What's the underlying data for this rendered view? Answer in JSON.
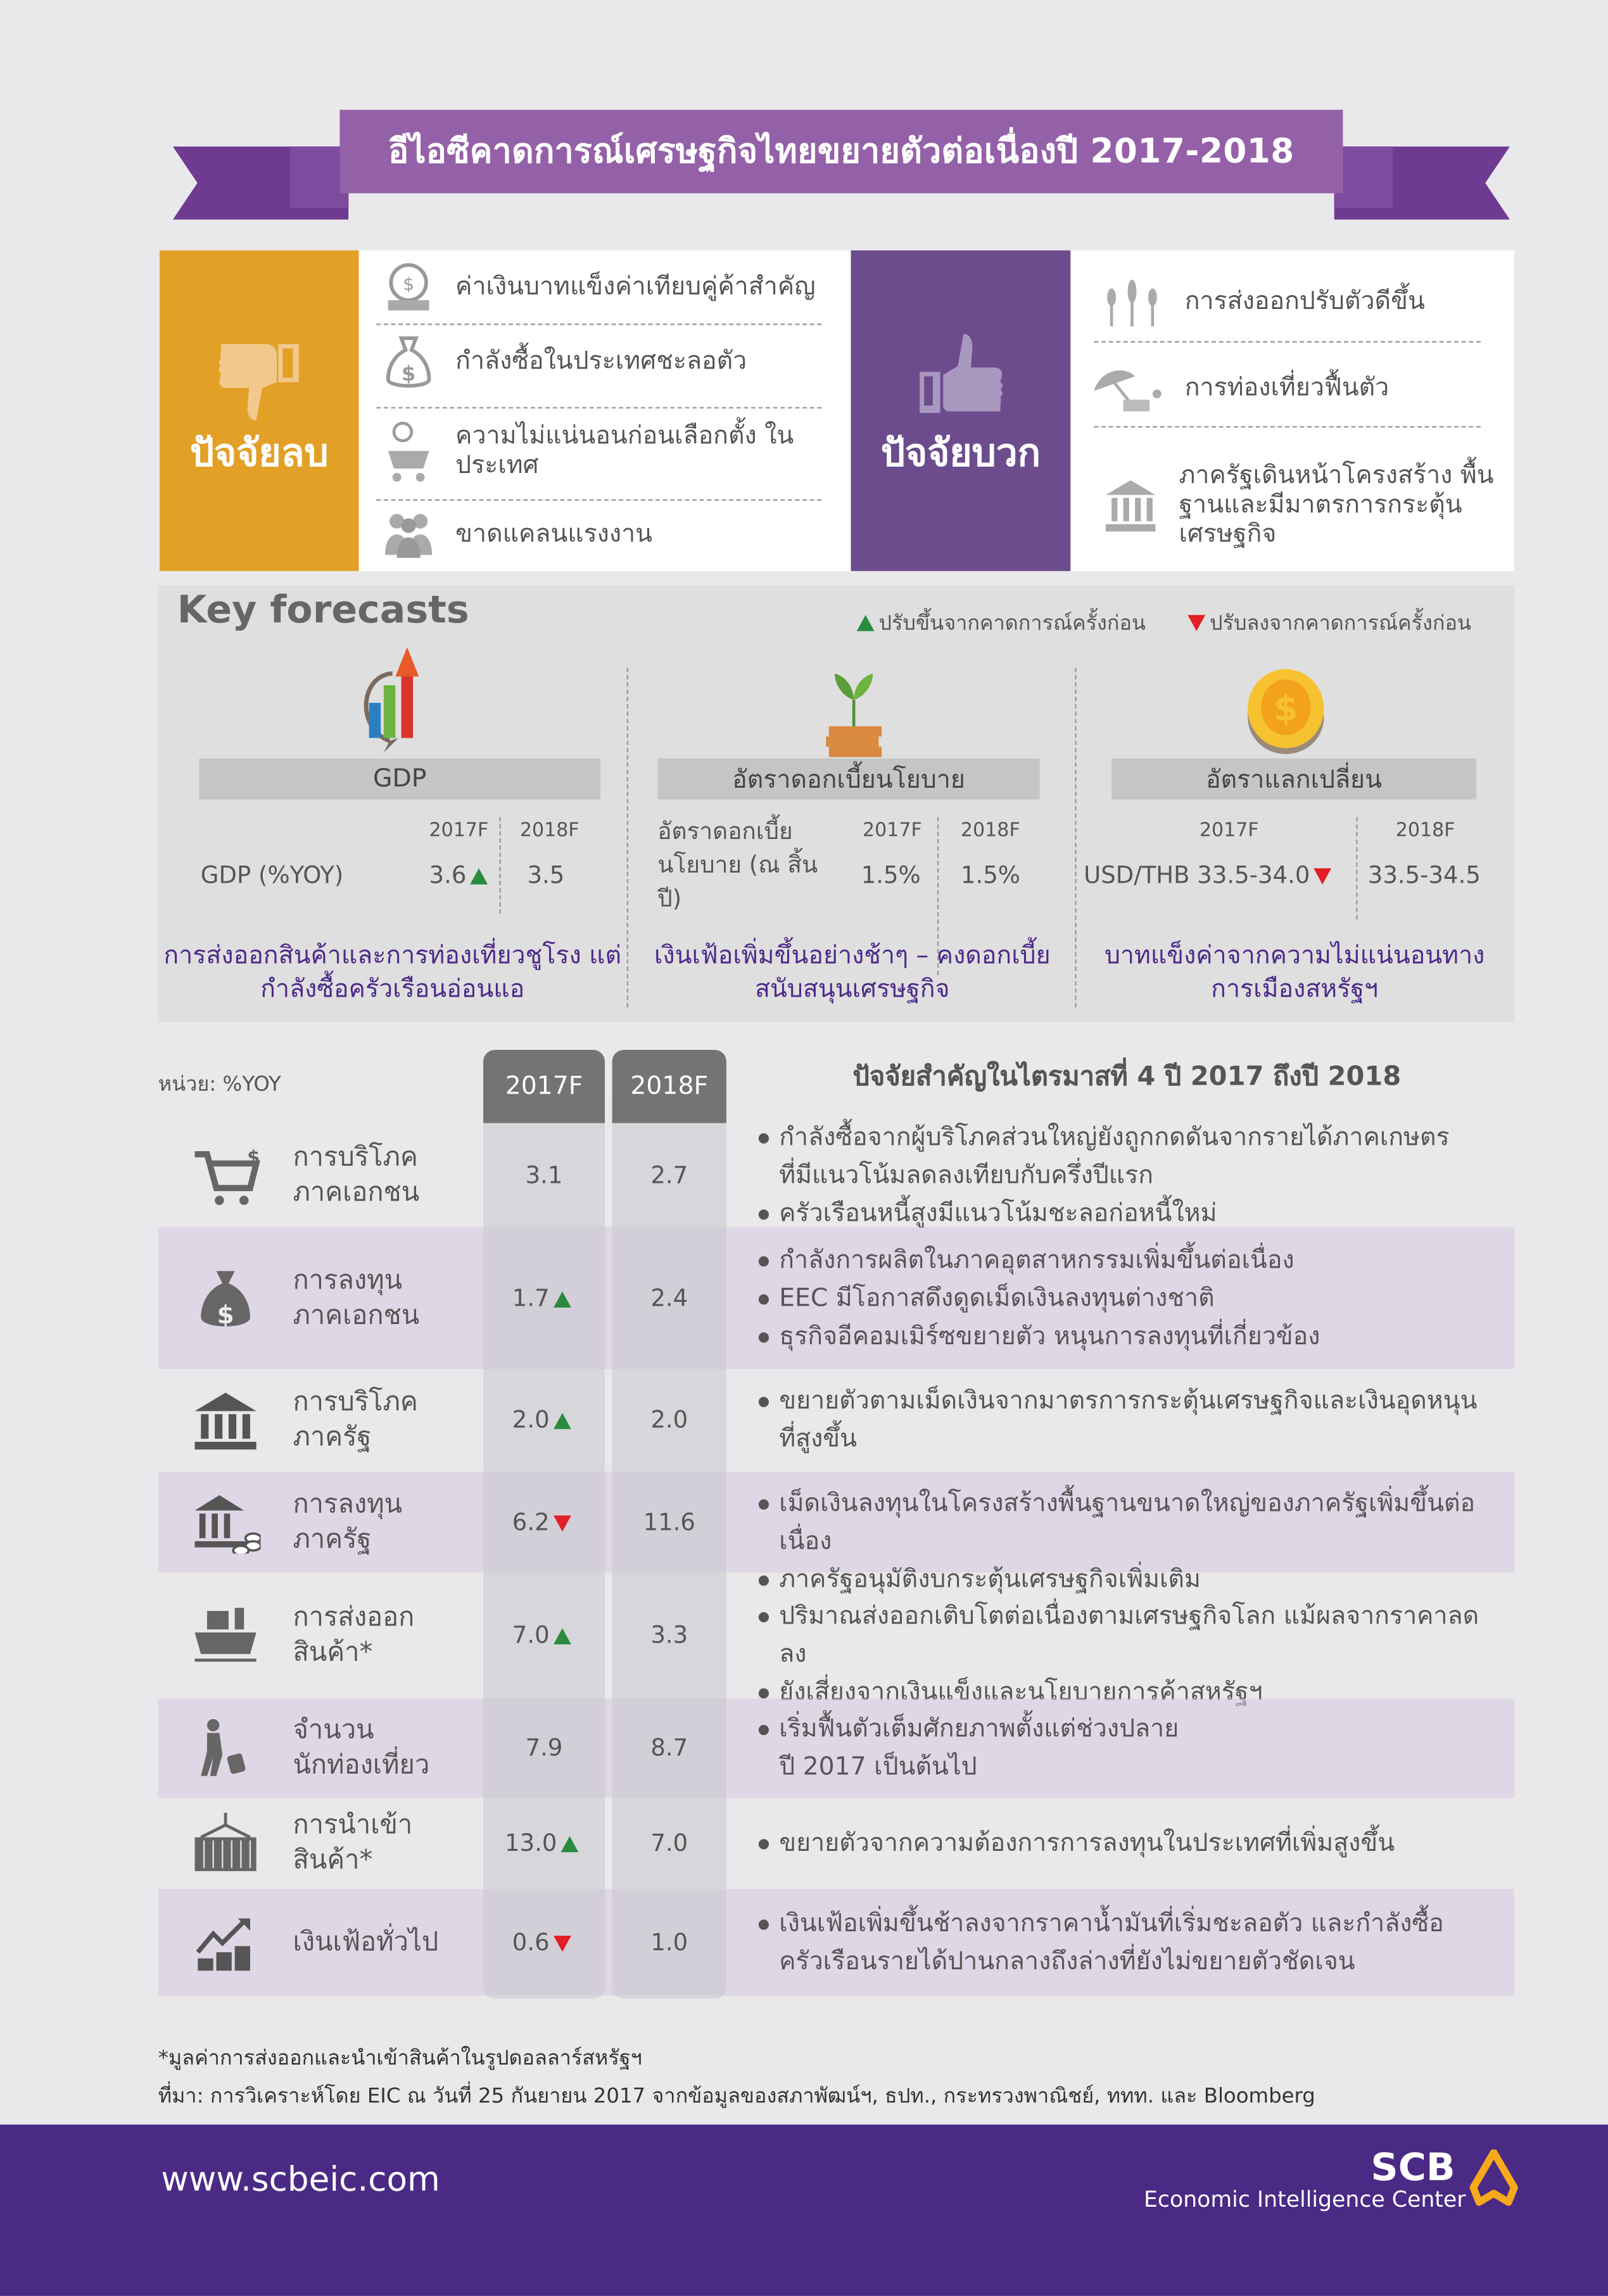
{
  "title": "อีไอซีคาดการณ์เศรษฐกิจไทยขยายตัวต่อเนื่องปี 2017-2018",
  "negative": {
    "label": "ปัจจัยลบ",
    "items": [
      {
        "icon": "currency-globe-icon",
        "text": "ค่าเงินบาทแข็งค่าเทียบคู่ค้าสำคัญ"
      },
      {
        "icon": "money-bag-icon",
        "text": "กำลังซื้อในประเทศชะลอตัว"
      },
      {
        "icon": "cart-coins-icon",
        "text": "ความไม่แน่นอนก่อนเลือกตั้ง ในประเทศ"
      },
      {
        "icon": "workers-icon",
        "text": "ขาดแคลนแรงงาน"
      }
    ]
  },
  "positive": {
    "label": "ปัจจัยบวก",
    "items": [
      {
        "icon": "wheat-icon",
        "text": "การส่งออกปรับตัวดีขึ้น"
      },
      {
        "icon": "beach-umbrella-icon",
        "text": "การท่องเที่ยวฟื้นตัว"
      },
      {
        "icon": "government-building-icon",
        "text": "ภาครัฐเดินหน้าโครงสร้าง พื้นฐานและมีมาตรการกระตุ้น เศรษฐกิจ"
      }
    ]
  },
  "colors": {
    "negative": "#e3a027",
    "positive": "#6c4c8d",
    "up": "#2a8a3e",
    "down": "#e31e24",
    "footer": "#4a2a84"
  },
  "key_forecasts": {
    "title": "Key forecasts",
    "legend_up": "ปรับขึ้นจากคาดการณ์ครั้งก่อน",
    "legend_down": "ปรับลงจากคาดการณ์ครั้งก่อน",
    "gdp": {
      "header": "GDP",
      "y1": "2017F",
      "y2": "2018F",
      "label": "GDP (%YOY)",
      "v1": "3.6",
      "v1_trend": "up",
      "v2": "3.5",
      "note": "การส่งออกสินค้าและการท่องเที่ยวชูโรง แต่กำลังซื้อครัวเรือนอ่อนแอ"
    },
    "rate": {
      "header": "อัตราดอกเบี้ยนโยบาย",
      "y1": "2017F",
      "y2": "2018F",
      "label": "อัตราดอกเบี้ย นโยบาย (ณ สิ้นปี)",
      "v1": "1.5%",
      "v2": "1.5%",
      "note": "เงินเฟ้อเพิ่มขึ้นอย่างช้าๆ – คงดอกเบี้ยสนับสนุนเศรษฐกิจ"
    },
    "fx": {
      "header": "อัตราแลกเปลี่ยน",
      "y1": "2017F",
      "y2": "2018F",
      "label": "USD/THB",
      "v1": "33.5-34.0",
      "v1_trend": "down",
      "v2": "33.5-34.5",
      "note": "บาทแข็งค่าจากความไม่แน่นอนทาง การเมืองสหรัฐฯ"
    }
  },
  "table": {
    "unit": "หน่วย: %YOY",
    "col1": "2017F",
    "col2": "2018F",
    "factors_title": "ปัจจัยสำคัญในไตรมาสที่ 4 ปี 2017 ถึงปี 2018",
    "rows": [
      {
        "icon": "shopping-cart-icon",
        "label": [
          "การบริโภค",
          "ภาคเอกชน"
        ],
        "v1": "3.1",
        "t1": null,
        "v2": "2.7",
        "bullets": [
          [
            "กำลังซื้อจากผู้บริโภคส่วนใหญ่ยังถูกกดดันจากรายได้ภาคเกษตร",
            "ที่มีแนวโน้มลดลงเทียบกับครึ่งปีแรก"
          ],
          [
            "ครัวเรือนหนี้สูงมีแนวโน้มชะลอก่อหนี้ใหม่"
          ]
        ]
      },
      {
        "icon": "money-bag-icon",
        "label": [
          "การลงทุน",
          "ภาคเอกชน"
        ],
        "v1": "1.7",
        "t1": "up",
        "v2": "2.4",
        "bullets": [
          [
            "กำลังการผลิตในภาคอุตสาหกรรมเพิ่มขึ้นต่อเนื่อง"
          ],
          [
            "EEC มีโอกาสดึงดูดเม็ดเงินลงทุนต่างชาติ"
          ],
          [
            "ธุรกิจอีคอมเมิร์ซขยายตัว หนุนการลงทุนที่เกี่ยวข้อง"
          ]
        ]
      },
      {
        "icon": "government-building-icon",
        "label": [
          "การบริโภค",
          "ภาครัฐ"
        ],
        "v1": "2.0",
        "t1": "up",
        "v2": "2.0",
        "bullets": [
          [
            "ขยายตัวตามเม็ดเงินจากมาตรการกระตุ้นเศรษฐกิจและเงินอุดหนุน",
            "ที่สูงขึ้น"
          ]
        ]
      },
      {
        "icon": "government-building-coins-icon",
        "label": [
          "การลงทุน",
          "ภาครัฐ"
        ],
        "v1": "6.2",
        "t1": "down",
        "v2": "11.6",
        "bullets": [
          [
            "เม็ดเงินลงทุนในโครงสร้างพื้นฐานขนาดใหญ่ของภาครัฐเพิ่มขึ้นต่อเนื่อง"
          ],
          [
            "ภาครัฐอนุมัติงบกระตุ้นเศรษฐกิจเพิ่มเติม"
          ]
        ]
      },
      {
        "icon": "cargo-ship-icon",
        "label": [
          "การส่งออก",
          "สินค้า*"
        ],
        "v1": "7.0",
        "t1": "up",
        "v2": "3.3",
        "bullets": [
          [
            "ปริมาณส่งออกเติบโตต่อเนื่องตามเศรษฐกิจโลก แม้ผลจากราคาลดลง"
          ],
          [
            "ยังเสี่ยงจากเงินแข็งและนโยบายการค้าสหรัฐฯ"
          ]
        ]
      },
      {
        "icon": "traveler-icon",
        "label": [
          "จำนวน",
          "นักท่องเที่ยว"
        ],
        "v1": "7.9",
        "t1": null,
        "v2": "8.7",
        "bullets": [
          [
            "เริ่มฟื้นตัวเต็มศักยภาพตั้งแต่ช่วงปลาย",
            "ปี 2017 เป็นต้นไป"
          ]
        ]
      },
      {
        "icon": "container-crane-icon",
        "label": [
          "การนำเข้า",
          "สินค้า*"
        ],
        "v1": "13.0",
        "t1": "up",
        "v2": "7.0",
        "bullets": [
          [
            "ขยายตัวจากความต้องการการลงทุนในประเทศที่เพิ่มสูงขึ้น"
          ]
        ]
      },
      {
        "icon": "inflation-chart-icon",
        "label": [
          "เงินเฟ้อทั่วไป"
        ],
        "v1": "0.6",
        "t1": "down",
        "v2": "1.0",
        "bullets": [
          [
            "เงินเฟ้อเพิ่มขึ้นช้าลงจากราคาน้ำมันที่เริ่มชะลอตัว และกำลังซื้อ",
            "ครัวเรือนรายได้ปานกลางถึงล่างที่ยังไม่ขยายตัวชัดเจน"
          ]
        ]
      }
    ]
  },
  "footnote": "*มูลค่าการส่งออกและนำเข้าสินค้าในรูปดอลลาร์สหรัฐฯ",
  "source": "ที่มา: การวิเคราะห์โดย EIC ณ วันที่ 25 กันยายน 2017 จากข้อมูลของสภาพัฒน์ฯ, ธปท., กระทรวงพาณิชย์, ททท. และ Bloomberg",
  "footer": {
    "url": "www.scbeic.com",
    "brand": "SCB",
    "brand_sub": "Economic Intelligence Center"
  }
}
